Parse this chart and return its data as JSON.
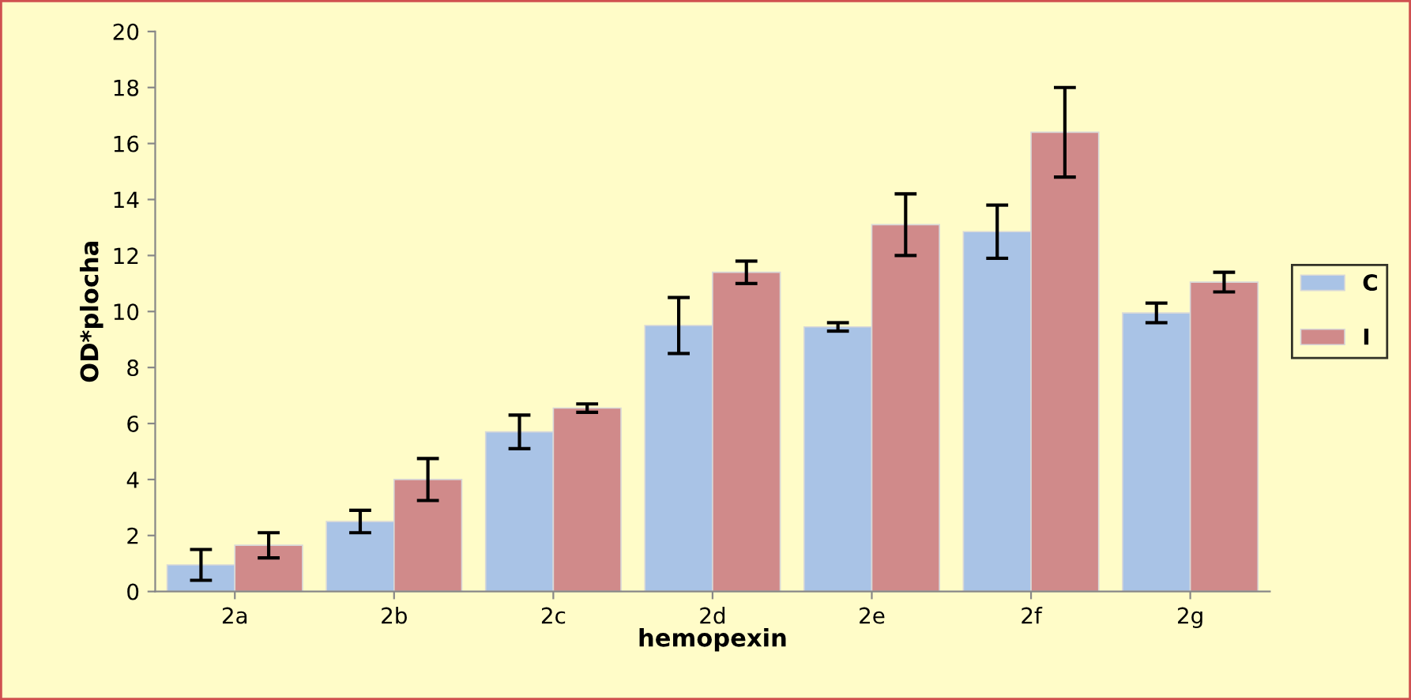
{
  "chart_data": {
    "type": "bar",
    "xlabel": "hemopexin",
    "ylabel": "OD*plocha",
    "categories": [
      "2a",
      "2b",
      "2c",
      "2d",
      "2e",
      "2f",
      "2g"
    ],
    "series": [
      {
        "name": "C",
        "color": "#a9c3e6",
        "values": [
          0.95,
          2.5,
          5.7,
          9.5,
          9.45,
          12.85,
          9.95
        ],
        "errors": [
          0.55,
          0.4,
          0.6,
          1.0,
          0.15,
          0.95,
          0.35
        ]
      },
      {
        "name": "I",
        "color": "#d08a8a",
        "values": [
          1.65,
          4.0,
          6.55,
          11.4,
          13.1,
          16.4,
          11.05
        ],
        "errors": [
          0.45,
          0.75,
          0.15,
          0.4,
          1.1,
          1.6,
          0.35
        ]
      }
    ],
    "ylim": [
      0,
      20
    ],
    "yticks": [
      0,
      2,
      4,
      6,
      8,
      10,
      12,
      14,
      16,
      18,
      20
    ],
    "grid": false,
    "legend": "right"
  }
}
